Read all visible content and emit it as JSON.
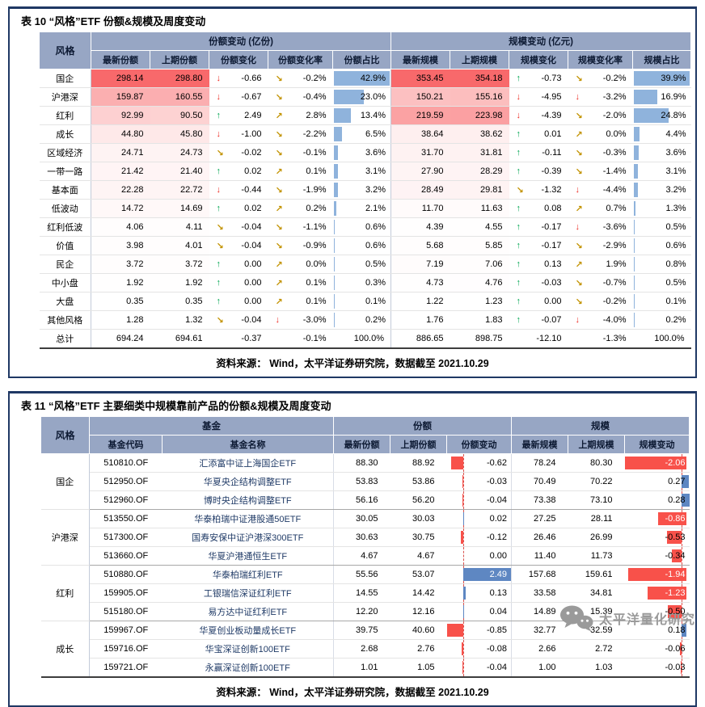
{
  "colors": {
    "navy": "#1F3864",
    "headbg": "#97A6C4",
    "heat-max": "#F8696B",
    "pct-bar": "#8FB3DC",
    "neg-bar": "#F8514A",
    "pos-bar": "#5E87C2",
    "axis-dash": "#D9534F",
    "arrow-up": "#00A651",
    "arrow-down": "#EE2C24",
    "arrow-diag": "#C29200",
    "watermark": "#9A9A9A"
  },
  "table10": {
    "title": "表 10  “风格”ETF 份额&规模及周度变动",
    "corner_label": "风格",
    "group_headers": [
      "份额变动 (亿份)",
      "规模变动 (亿元)"
    ],
    "col_headers": [
      "最新份额",
      "上期份额",
      "份额变化",
      "份额变化率",
      "份额占比",
      "最新规模",
      "上期规模",
      "规模变化",
      "规模变化率",
      "规模占比"
    ],
    "rows": [
      {
        "style": "国企",
        "cells": [
          "298.14",
          "298.80",
          "-0.66",
          "-0.2%",
          "42.9%",
          "353.45",
          "354.18",
          "-0.73",
          "-0.2%",
          "39.9%"
        ],
        "icons": [
          "dn",
          "dd",
          "up",
          "dd"
        ]
      },
      {
        "style": "沪港深",
        "cells": [
          "159.87",
          "160.55",
          "-0.67",
          "-0.4%",
          "23.0%",
          "150.21",
          "155.16",
          "-4.95",
          "-3.2%",
          "16.9%"
        ],
        "icons": [
          "dn",
          "dd",
          "dn",
          "dn"
        ]
      },
      {
        "style": "红利",
        "cells": [
          "92.99",
          "90.50",
          "2.49",
          "2.8%",
          "13.4%",
          "219.59",
          "223.98",
          "-4.39",
          "-2.0%",
          "24.8%"
        ],
        "icons": [
          "up",
          "du",
          "dn",
          "dd"
        ]
      },
      {
        "style": "成长",
        "cells": [
          "44.80",
          "45.80",
          "-1.00",
          "-2.2%",
          "6.5%",
          "38.64",
          "38.62",
          "0.01",
          "0.0%",
          "4.4%"
        ],
        "icons": [
          "dn",
          "dd",
          "up",
          "du"
        ]
      },
      {
        "style": "区域经济",
        "cells": [
          "24.71",
          "24.73",
          "-0.02",
          "-0.1%",
          "3.6%",
          "31.70",
          "31.81",
          "-0.11",
          "-0.3%",
          "3.6%"
        ],
        "icons": [
          "dd",
          "dd",
          "up",
          "dd"
        ]
      },
      {
        "style": "一带一路",
        "cells": [
          "21.42",
          "21.40",
          "0.02",
          "0.1%",
          "3.1%",
          "27.90",
          "28.29",
          "-0.39",
          "-1.4%",
          "3.1%"
        ],
        "icons": [
          "up",
          "du",
          "up",
          "dd"
        ]
      },
      {
        "style": "基本面",
        "cells": [
          "22.28",
          "22.72",
          "-0.44",
          "-1.9%",
          "3.2%",
          "28.49",
          "29.81",
          "-1.32",
          "-4.4%",
          "3.2%"
        ],
        "icons": [
          "dn",
          "dd",
          "dd",
          "dn"
        ]
      },
      {
        "style": "低波动",
        "cells": [
          "14.72",
          "14.69",
          "0.02",
          "0.2%",
          "2.1%",
          "11.70",
          "11.63",
          "0.08",
          "0.7%",
          "1.3%"
        ],
        "icons": [
          "up",
          "du",
          "up",
          "du"
        ]
      },
      {
        "style": "红利低波",
        "cells": [
          "4.06",
          "4.11",
          "-0.04",
          "-1.1%",
          "0.6%",
          "4.39",
          "4.55",
          "-0.17",
          "-3.6%",
          "0.5%"
        ],
        "icons": [
          "dd",
          "dd",
          "up",
          "dn"
        ]
      },
      {
        "style": "价值",
        "cells": [
          "3.98",
          "4.01",
          "-0.04",
          "-0.9%",
          "0.6%",
          "5.68",
          "5.85",
          "-0.17",
          "-2.9%",
          "0.6%"
        ],
        "icons": [
          "dd",
          "dd",
          "up",
          "dd"
        ]
      },
      {
        "style": "民企",
        "cells": [
          "3.72",
          "3.72",
          "0.00",
          "0.0%",
          "0.5%",
          "7.19",
          "7.06",
          "0.13",
          "1.9%",
          "0.8%"
        ],
        "icons": [
          "up",
          "du",
          "up",
          "du"
        ]
      },
      {
        "style": "中小盘",
        "cells": [
          "1.92",
          "1.92",
          "0.00",
          "0.1%",
          "0.3%",
          "4.73",
          "4.76",
          "-0.03",
          "-0.7%",
          "0.5%"
        ],
        "icons": [
          "up",
          "du",
          "up",
          "dd"
        ]
      },
      {
        "style": "大盘",
        "cells": [
          "0.35",
          "0.35",
          "0.00",
          "0.1%",
          "0.1%",
          "1.22",
          "1.23",
          "0.00",
          "-0.2%",
          "0.1%"
        ],
        "icons": [
          "up",
          "du",
          "up",
          "dd"
        ]
      },
      {
        "style": "其他风格",
        "cells": [
          "1.28",
          "1.32",
          "-0.04",
          "-3.0%",
          "0.2%",
          "1.76",
          "1.83",
          "-0.07",
          "-4.0%",
          "0.2%"
        ],
        "icons": [
          "dd",
          "dn",
          "up",
          "dn"
        ]
      }
    ],
    "total": {
      "label": "总计",
      "cells": [
        "694.24",
        "694.61",
        "-0.37",
        "-0.1%",
        "100.0%",
        "886.65",
        "898.75",
        "-12.10",
        "-1.3%",
        "100.0%"
      ]
    },
    "source": "资料来源：  Wind，太平洋证券研究院，数据截至 2021.10.29"
  },
  "table11": {
    "title": "表 11  “风格”ETF 主要细类中规模靠前产品的份额&规模及周度变动",
    "corner_label": "风格",
    "group_headers": [
      "基金",
      "份额",
      "规模"
    ],
    "col_headers": [
      "基金代码",
      "基金名称",
      "最新份额",
      "上期份额",
      "份额变动",
      "最新规模",
      "上期规模",
      "规模变动"
    ],
    "groups": [
      {
        "style": "国企",
        "funds": [
          {
            "code": "510810.OF",
            "name": "汇添富中证上海国企ETF",
            "cells": [
              "88.30",
              "88.92",
              "-0.62",
              "78.24",
              "80.30",
              "-2.06"
            ]
          },
          {
            "code": "512950.OF",
            "name": "华夏央企结构调整ETF",
            "cells": [
              "53.83",
              "53.86",
              "-0.03",
              "70.49",
              "70.22",
              "0.27"
            ]
          },
          {
            "code": "512960.OF",
            "name": "博时央企结构调整ETF",
            "cells": [
              "56.16",
              "56.20",
              "-0.04",
              "73.38",
              "73.10",
              "0.28"
            ]
          }
        ]
      },
      {
        "style": "沪港深",
        "funds": [
          {
            "code": "513550.OF",
            "name": "华泰柏瑞中证港股通50ETF",
            "cells": [
              "30.05",
              "30.03",
              "0.02",
              "27.25",
              "28.11",
              "-0.86"
            ]
          },
          {
            "code": "517300.OF",
            "name": "国寿安保中证沪港深300ETF",
            "cells": [
              "30.63",
              "30.75",
              "-0.12",
              "26.46",
              "26.99",
              "-0.53"
            ]
          },
          {
            "code": "513660.OF",
            "name": "华夏沪港通恒生ETF",
            "cells": [
              "4.67",
              "4.67",
              "0.00",
              "11.40",
              "11.73",
              "-0.34"
            ]
          }
        ]
      },
      {
        "style": "红利",
        "funds": [
          {
            "code": "510880.OF",
            "name": "华泰柏瑞红利ETF",
            "cells": [
              "55.56",
              "53.07",
              "2.49",
              "157.68",
              "159.61",
              "-1.94"
            ]
          },
          {
            "code": "159905.OF",
            "name": "工银瑞信深证红利ETF",
            "cells": [
              "14.55",
              "14.42",
              "0.13",
              "33.58",
              "34.81",
              "-1.23"
            ]
          },
          {
            "code": "515180.OF",
            "name": "易方达中证红利ETF",
            "cells": [
              "12.20",
              "12.16",
              "0.04",
              "14.89",
              "15.39",
              "-0.50"
            ]
          }
        ]
      },
      {
        "style": "成长",
        "funds": [
          {
            "code": "159967.OF",
            "name": "华夏创业板动量成长ETF",
            "cells": [
              "39.75",
              "40.60",
              "-0.85",
              "32.77",
              "32.59",
              "0.18"
            ]
          },
          {
            "code": "159716.OF",
            "name": "华宝深证创新100ETF",
            "cells": [
              "2.68",
              "2.76",
              "-0.08",
              "2.66",
              "2.72",
              "-0.06"
            ]
          },
          {
            "code": "159721.OF",
            "name": "永赢深证创新100ETF",
            "cells": [
              "1.01",
              "1.05",
              "-0.04",
              "1.00",
              "1.03",
              "-0.03"
            ]
          }
        ]
      }
    ],
    "source": "资料来源：  Wind，太平洋证券研究院，数据截至 2021.10.29"
  },
  "watermark": {
    "text": "太平洋量化研究",
    "icon": "wechat-icon"
  }
}
